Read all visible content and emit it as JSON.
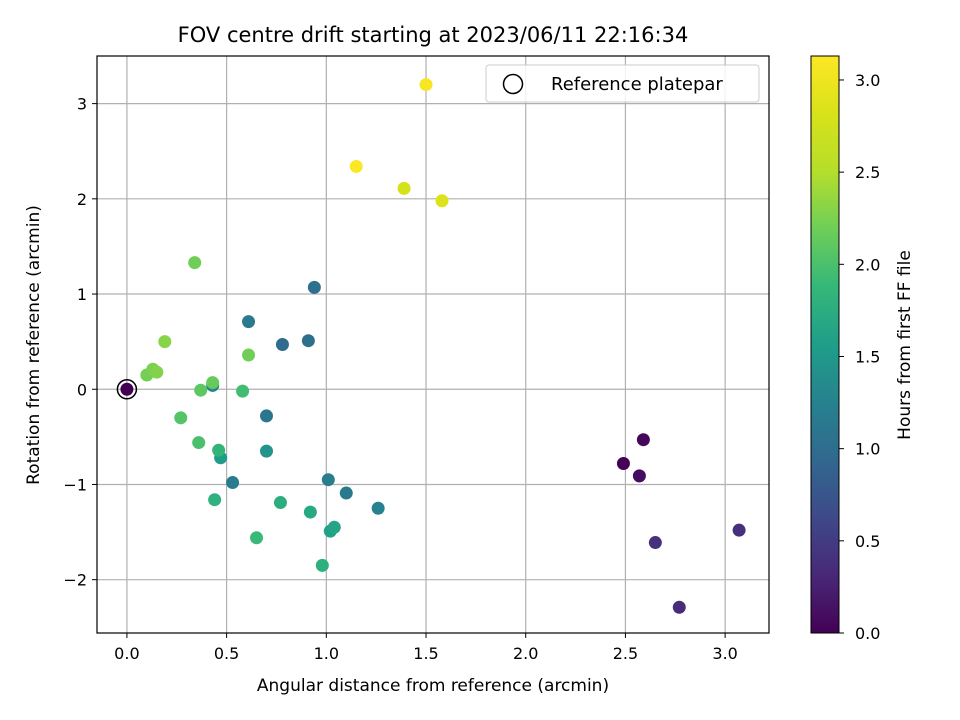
{
  "chart_data": {
    "type": "scatter",
    "title": "FOV centre drift starting at 2023/06/11 22:16:34",
    "xlabel": "Angular distance from reference (arcmin)",
    "ylabel": "Rotation from reference (arcmin)",
    "xlim": [
      -0.15,
      3.22
    ],
    "ylim": [
      -2.56,
      3.5
    ],
    "xticks": [
      0.0,
      0.5,
      1.0,
      1.5,
      2.0,
      2.5,
      3.0
    ],
    "xtick_labels": [
      "0.0",
      "0.5",
      "1.0",
      "1.5",
      "2.0",
      "2.5",
      "3.0"
    ],
    "yticks": [
      -2,
      -1,
      0,
      1,
      2,
      3
    ],
    "ytick_labels": [
      "−2",
      "−1",
      "0",
      "1",
      "2",
      "3"
    ],
    "grid": true,
    "legend": {
      "placement": "top-right",
      "entries": [
        "Reference platepar"
      ]
    },
    "colorbar": {
      "label": "Hours from first FF file",
      "range": [
        0.0,
        3.13
      ],
      "ticks": [
        0.0,
        0.5,
        1.0,
        1.5,
        2.0,
        2.5,
        3.0
      ],
      "tick_labels": [
        "0.0",
        "0.5",
        "1.0",
        "1.5",
        "2.0",
        "2.5",
        "3.0"
      ],
      "colormap": "viridis"
    },
    "reference_point": {
      "x": 0.0,
      "y": 0.0
    },
    "points": [
      {
        "x": 0.0,
        "y": 0.0,
        "t": 0.0
      },
      {
        "x": 2.49,
        "y": -0.78,
        "t": 0.02
      },
      {
        "x": 2.59,
        "y": -0.53,
        "t": 0.05
      },
      {
        "x": 2.57,
        "y": -0.91,
        "t": 0.1
      },
      {
        "x": 2.77,
        "y": -2.29,
        "t": 0.35
      },
      {
        "x": 2.65,
        "y": -1.61,
        "t": 0.4
      },
      {
        "x": 3.07,
        "y": -1.48,
        "t": 0.38
      },
      {
        "x": 0.94,
        "y": 1.07,
        "t": 1.05
      },
      {
        "x": 0.78,
        "y": 0.47,
        "t": 1.0
      },
      {
        "x": 0.91,
        "y": 0.51,
        "t": 1.02
      },
      {
        "x": 0.61,
        "y": 0.71,
        "t": 1.15
      },
      {
        "x": 0.7,
        "y": -0.28,
        "t": 1.1
      },
      {
        "x": 1.01,
        "y": -0.95,
        "t": 1.2
      },
      {
        "x": 1.1,
        "y": -1.09,
        "t": 1.15
      },
      {
        "x": 1.26,
        "y": -1.25,
        "t": 1.25
      },
      {
        "x": 0.53,
        "y": -0.98,
        "t": 1.18
      },
      {
        "x": 0.43,
        "y": 0.04,
        "t": 1.3
      },
      {
        "x": 0.7,
        "y": -0.65,
        "t": 1.45
      },
      {
        "x": 0.47,
        "y": -0.72,
        "t": 1.55
      },
      {
        "x": 1.02,
        "y": -1.49,
        "t": 1.6
      },
      {
        "x": 1.04,
        "y": -1.45,
        "t": 1.65
      },
      {
        "x": 0.92,
        "y": -1.29,
        "t": 1.7
      },
      {
        "x": 0.77,
        "y": -1.19,
        "t": 1.75
      },
      {
        "x": 0.98,
        "y": -1.85,
        "t": 1.78
      },
      {
        "x": 0.44,
        "y": -1.16,
        "t": 1.8
      },
      {
        "x": 0.46,
        "y": -0.64,
        "t": 1.85
      },
      {
        "x": 0.65,
        "y": -1.56,
        "t": 1.9
      },
      {
        "x": 0.58,
        "y": -0.02,
        "t": 1.95
      },
      {
        "x": 0.36,
        "y": -0.56,
        "t": 2.0
      },
      {
        "x": 0.27,
        "y": -0.3,
        "t": 2.05
      },
      {
        "x": 0.37,
        "y": -0.01,
        "t": 2.1
      },
      {
        "x": 0.43,
        "y": 0.07,
        "t": 2.15
      },
      {
        "x": 0.61,
        "y": 0.36,
        "t": 2.2
      },
      {
        "x": 0.1,
        "y": 0.15,
        "t": 2.22
      },
      {
        "x": 0.13,
        "y": 0.21,
        "t": 2.25
      },
      {
        "x": 0.15,
        "y": 0.18,
        "t": 2.28
      },
      {
        "x": 0.19,
        "y": 0.5,
        "t": 2.3
      },
      {
        "x": 0.34,
        "y": 1.33,
        "t": 2.2
      },
      {
        "x": 1.58,
        "y": 1.98,
        "t": 2.85
      },
      {
        "x": 1.39,
        "y": 2.11,
        "t": 2.78
      },
      {
        "x": 1.15,
        "y": 2.34,
        "t": 3.12
      },
      {
        "x": 1.5,
        "y": 3.2,
        "t": 3.08
      }
    ]
  }
}
